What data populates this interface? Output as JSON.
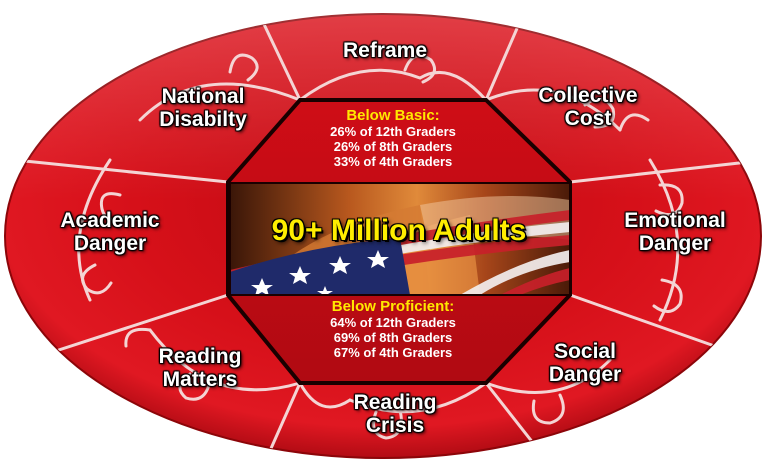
{
  "center": {
    "headline": "90+ Million Adults",
    "below_basic": {
      "title": "Below Basic:",
      "lines": [
        "26% of 12th Graders",
        "26% of 8th Graders",
        "33% of 4th Graders"
      ]
    },
    "below_proficient": {
      "title": "Below Proficient:",
      "lines": [
        "64% of 12th Graders",
        "69% of 8th Graders",
        "67% of 4th Graders"
      ]
    }
  },
  "segments": [
    {
      "id": "reframe",
      "lines": [
        "Reframe"
      ]
    },
    {
      "id": "collective-cost",
      "lines": [
        "Collective",
        "Cost"
      ]
    },
    {
      "id": "emotional-danger",
      "lines": [
        "Emotional",
        "Danger"
      ]
    },
    {
      "id": "social-danger",
      "lines": [
        "Social",
        "Danger"
      ]
    },
    {
      "id": "reading-crisis",
      "lines": [
        "Reading",
        "Crisis"
      ]
    },
    {
      "id": "reading-matters",
      "lines": [
        "Reading",
        "Matters"
      ]
    },
    {
      "id": "academic-danger",
      "lines": [
        "Academic",
        "Danger"
      ]
    },
    {
      "id": "national-disability",
      "lines": [
        "National",
        "Disabilty"
      ]
    }
  ],
  "colors": {
    "outer_red": "#d2101a",
    "inner_red": "#b50d14",
    "seam": "#f2d6d6",
    "octagon_border": "#1a0000",
    "headline_yellow": "#ffee00",
    "subhead_yellow": "#ffe800"
  }
}
